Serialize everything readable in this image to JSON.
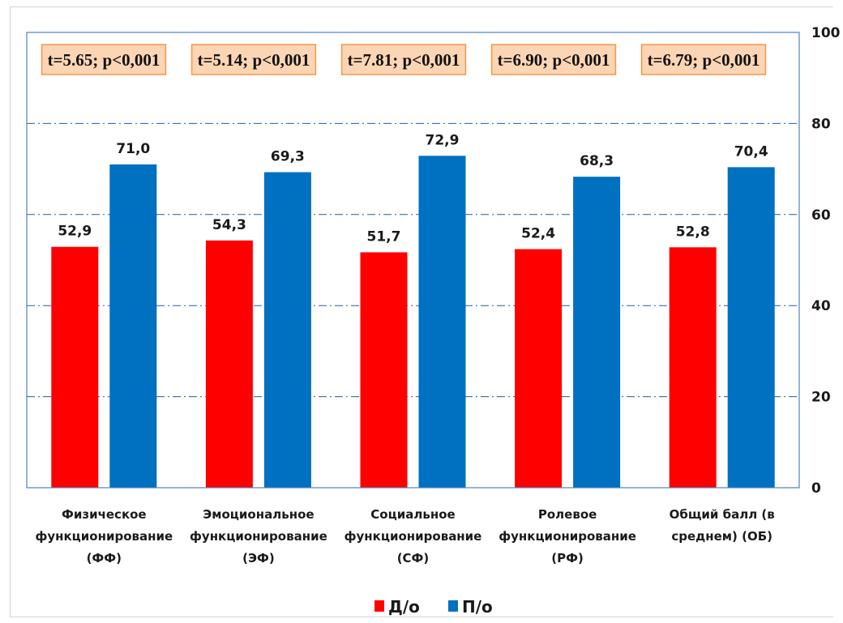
{
  "chart_data": {
    "type": "bar",
    "categories": [
      "Физическое функционирование (ФФ)",
      "Эмоциональное функционирование (ЭФ)",
      "Социальное функционирование (СФ)",
      "Ролевое функционирование (РФ)",
      "Общий балл (в среднем) (ОБ)"
    ],
    "category_lines": [
      [
        "Физическое",
        "функционирование",
        "(ФФ)"
      ],
      [
        "Эмоциональное",
        "функционирование",
        "(ЭФ)"
      ],
      [
        "Социальное",
        "функционирование",
        "(СФ)"
      ],
      [
        "Ролевое",
        "функционирование",
        "(РФ)"
      ],
      [
        "Общий балл (в",
        "среднем) (ОБ)"
      ]
    ],
    "series": [
      {
        "name": "Д/о",
        "color": "#ff0000",
        "values": [
          52.9,
          54.3,
          51.7,
          52.4,
          52.8
        ],
        "labels": [
          "52,9",
          "54,3",
          "51,7",
          "52,4",
          "52,8"
        ]
      },
      {
        "name": "П/о",
        "color": "#0070c0",
        "values": [
          71.0,
          69.3,
          72.9,
          68.3,
          70.4
        ],
        "labels": [
          "71,0",
          "69,3",
          "72,9",
          "68,3",
          "70,4"
        ]
      }
    ],
    "annotations": [
      "t=5.65; p<0,001",
      "t=5.14; p<0,001",
      "t=7.81; p<0,001",
      "t=6.90; p<0,001",
      "t=6.79; p<0,001"
    ],
    "ylim": [
      0,
      100
    ],
    "yticks": [
      0,
      20,
      40,
      60,
      80,
      100
    ],
    "y_axis_side": "right",
    "grid": true,
    "grid_style": "dash-dot",
    "legend_position": "bottom",
    "plot_border_color": "#4f81bd",
    "annotation_fill": "#fcd5b4",
    "annotation_border": "#f79646",
    "title": "",
    "xlabel": "",
    "ylabel": ""
  }
}
